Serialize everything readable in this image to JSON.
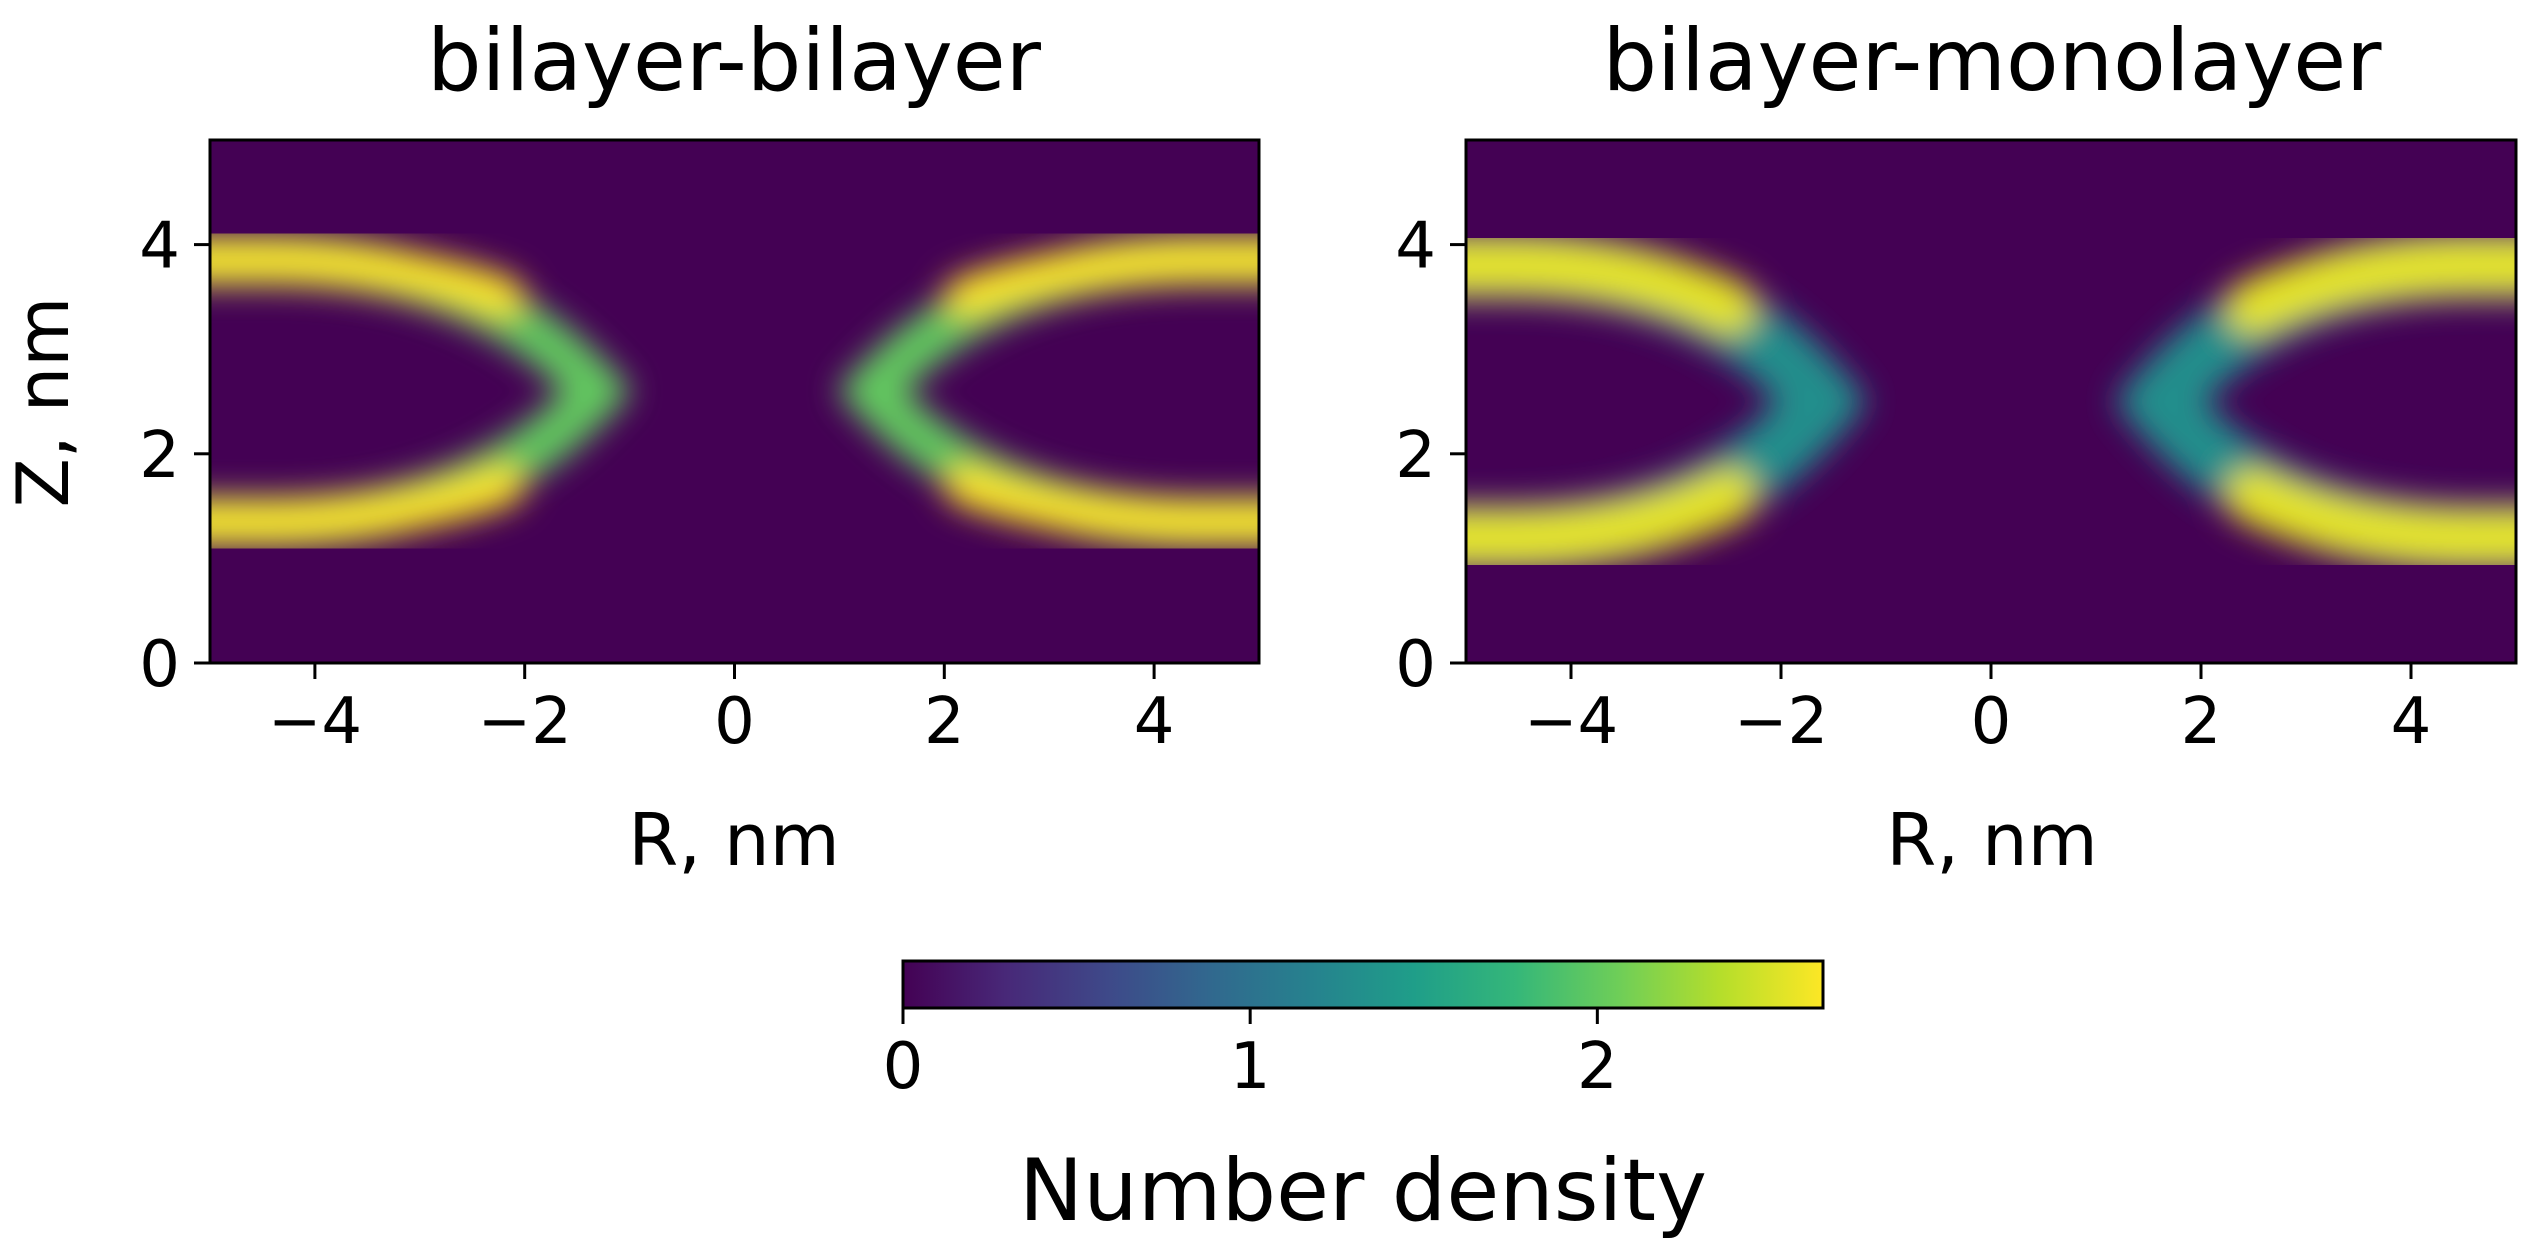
{
  "chart_data": [
    {
      "type": "heatmap",
      "title": "bilayer-bilayer",
      "xlabel": "R, nm",
      "ylabel": "Z, nm",
      "xlim": [
        -5,
        5
      ],
      "ylim": [
        0,
        5
      ],
      "xticks": [
        -4,
        -2,
        0,
        2,
        4
      ],
      "xtick_labels": [
        "−4",
        "−2",
        "0",
        "2",
        "4"
      ],
      "yticks": [
        0,
        2,
        4
      ],
      "ytick_labels": [
        "0",
        "2",
        "4"
      ],
      "grid": false,
      "density_model": {
        "arc_vertex_abs_r": 1.3,
        "arc_half_gap_z": 1.2,
        "arc_center_z": 2.6,
        "arc_outer_abs_r": 4.6,
        "arc_outer_half_gap_z": 1.2,
        "arc_width": 0.22,
        "peak_value": 2.65,
        "vertex_value": 2.0
      }
    },
    {
      "type": "heatmap",
      "title": "bilayer-monolayer",
      "xlabel": "R, nm",
      "ylabel": "",
      "xlim": [
        -5,
        5
      ],
      "ylim": [
        0,
        5
      ],
      "xticks": [
        -4,
        -2,
        0,
        2,
        4
      ],
      "xtick_labels": [
        "−4",
        "−2",
        "0",
        "2",
        "4"
      ],
      "yticks": [
        0,
        2,
        4
      ],
      "ytick_labels": [
        "0",
        "2",
        "4"
      ],
      "grid": false,
      "density_model": {
        "arc_vertex_abs_r": 1.6,
        "arc_half_gap_z": 1.2,
        "arc_center_z": 2.5,
        "arc_outer_abs_r": 4.6,
        "arc_outer_half_gap_z": 1.25,
        "arc_width": 0.3,
        "peak_value": 2.55,
        "vertex_value": 1.3
      }
    }
  ],
  "colorbar": {
    "label": "Number density",
    "range": [
      0,
      2.65
    ],
    "ticks": [
      0,
      1,
      2
    ],
    "tick_labels": [
      "0",
      "1",
      "2"
    ],
    "colormap": "viridis",
    "colors": [
      "#440154",
      "#482878",
      "#3e4989",
      "#31688e",
      "#26828e",
      "#1f9e89",
      "#35b779",
      "#6ece58",
      "#b5de2b",
      "#fde725"
    ]
  }
}
